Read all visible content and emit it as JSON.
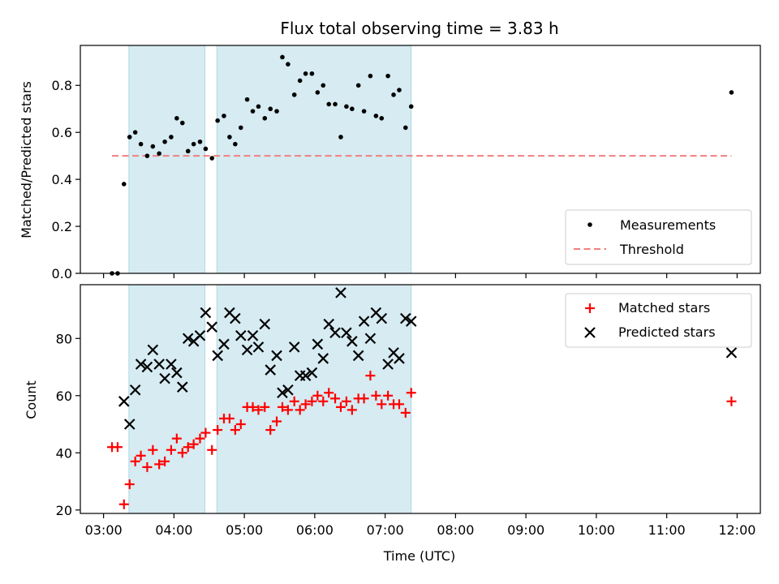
{
  "chart_data": {
    "title": "Flux total observing time = 3.83 h",
    "xlabel": "Time (UTC)",
    "x_tick_labels": [
      "03:00",
      "04:00",
      "05:00",
      "06:00",
      "07:00",
      "08:00",
      "09:00",
      "10:00",
      "11:00",
      "12:00"
    ],
    "x_range_hours": [
      2.67,
      12.33
    ],
    "shaded_intervals_hours": [
      [
        3.36,
        4.44
      ],
      [
        4.61,
        7.37
      ]
    ],
    "colors": {
      "shade": "#add8e6",
      "threshold": "#f08080",
      "matched": "#ff0000",
      "predicted": "#000000",
      "measurements": "#000000"
    },
    "panels": [
      {
        "type": "scatter",
        "ylabel": "Matched/Predicted stars",
        "ylim": [
          0,
          0.97
        ],
        "y_ticks": [
          0.0,
          0.2,
          0.4,
          0.6,
          0.8
        ],
        "y_tick_labels": [
          "0.0",
          "0.2",
          "0.4",
          "0.6",
          "0.8"
        ],
        "legend_position": "lower-right",
        "threshold": {
          "name": "Threshold",
          "value": 0.5,
          "x_range_hours": [
            3.12,
            11.92
          ]
        },
        "series": [
          {
            "name": "Measurements",
            "points": [
              [
                3.12,
                0.0
              ],
              [
                3.2,
                0.0
              ],
              [
                3.29,
                0.38
              ],
              [
                3.37,
                0.58
              ],
              [
                3.45,
                0.6
              ],
              [
                3.53,
                0.55
              ],
              [
                3.62,
                0.5
              ],
              [
                3.7,
                0.54
              ],
              [
                3.79,
                0.51
              ],
              [
                3.87,
                0.56
              ],
              [
                3.96,
                0.58
              ],
              [
                4.04,
                0.66
              ],
              [
                4.12,
                0.64
              ],
              [
                4.2,
                0.52
              ],
              [
                4.28,
                0.55
              ],
              [
                4.37,
                0.56
              ],
              [
                4.45,
                0.53
              ],
              [
                4.54,
                0.49
              ],
              [
                4.62,
                0.65
              ],
              [
                4.71,
                0.67
              ],
              [
                4.79,
                0.58
              ],
              [
                4.87,
                0.55
              ],
              [
                4.95,
                0.62
              ],
              [
                5.04,
                0.74
              ],
              [
                5.12,
                0.69
              ],
              [
                5.2,
                0.71
              ],
              [
                5.29,
                0.66
              ],
              [
                5.37,
                0.7
              ],
              [
                5.46,
                0.69
              ],
              [
                5.54,
                0.92
              ],
              [
                5.62,
                0.89
              ],
              [
                5.71,
                0.76
              ],
              [
                5.79,
                0.82
              ],
              [
                5.87,
                0.85
              ],
              [
                5.96,
                0.85
              ],
              [
                6.04,
                0.77
              ],
              [
                6.12,
                0.8
              ],
              [
                6.2,
                0.72
              ],
              [
                6.29,
                0.72
              ],
              [
                6.37,
                0.58
              ],
              [
                6.45,
                0.71
              ],
              [
                6.53,
                0.7
              ],
              [
                6.62,
                0.8
              ],
              [
                6.7,
                0.69
              ],
              [
                6.79,
                0.84
              ],
              [
                6.87,
                0.67
              ],
              [
                6.95,
                0.66
              ],
              [
                7.04,
                0.84
              ],
              [
                7.12,
                0.76
              ],
              [
                7.2,
                0.78
              ],
              [
                7.29,
                0.62
              ],
              [
                7.37,
                0.71
              ],
              [
                11.92,
                0.77
              ]
            ]
          }
        ]
      },
      {
        "type": "scatter",
        "ylabel": "Count",
        "ylim": [
          18.8,
          98.8
        ],
        "y_ticks": [
          20,
          40,
          60,
          80
        ],
        "y_tick_labels": [
          "20",
          "40",
          "60",
          "80"
        ],
        "legend_position": "top-right",
        "series": [
          {
            "name": "Matched stars",
            "marker": "plus",
            "points": [
              [
                3.12,
                42
              ],
              [
                3.2,
                42
              ],
              [
                3.29,
                22
              ],
              [
                3.37,
                29
              ],
              [
                3.45,
                37
              ],
              [
                3.53,
                39
              ],
              [
                3.62,
                35
              ],
              [
                3.7,
                41
              ],
              [
                3.79,
                36
              ],
              [
                3.87,
                37
              ],
              [
                3.96,
                41
              ],
              [
                4.04,
                45
              ],
              [
                4.12,
                40
              ],
              [
                4.2,
                42
              ],
              [
                4.28,
                43
              ],
              [
                4.37,
                45
              ],
              [
                4.45,
                47
              ],
              [
                4.54,
                41
              ],
              [
                4.62,
                48
              ],
              [
                4.71,
                52
              ],
              [
                4.79,
                52
              ],
              [
                4.87,
                48
              ],
              [
                4.95,
                50
              ],
              [
                5.04,
                56
              ],
              [
                5.12,
                56
              ],
              [
                5.2,
                55
              ],
              [
                5.29,
                56
              ],
              [
                5.37,
                48
              ],
              [
                5.46,
                51
              ],
              [
                5.54,
                56
              ],
              [
                5.62,
                55
              ],
              [
                5.71,
                58
              ],
              [
                5.79,
                55
              ],
              [
                5.87,
                57
              ],
              [
                5.96,
                58
              ],
              [
                6.04,
                60
              ],
              [
                6.12,
                58
              ],
              [
                6.2,
                61
              ],
              [
                6.29,
                59
              ],
              [
                6.37,
                56
              ],
              [
                6.45,
                58
              ],
              [
                6.53,
                55
              ],
              [
                6.62,
                59
              ],
              [
                6.7,
                59
              ],
              [
                6.79,
                67
              ],
              [
                6.87,
                60
              ],
              [
                6.95,
                57
              ],
              [
                7.04,
                60
              ],
              [
                7.12,
                57
              ],
              [
                7.2,
                57
              ],
              [
                7.29,
                54
              ],
              [
                7.37,
                61
              ],
              [
                11.92,
                58
              ]
            ]
          },
          {
            "name": "Predicted stars",
            "marker": "x",
            "points": [
              [
                3.29,
                58
              ],
              [
                3.37,
                50
              ],
              [
                3.45,
                62
              ],
              [
                3.53,
                71
              ],
              [
                3.62,
                70
              ],
              [
                3.7,
                76
              ],
              [
                3.79,
                71
              ],
              [
                3.87,
                66
              ],
              [
                3.96,
                71
              ],
              [
                4.04,
                68
              ],
              [
                4.12,
                63
              ],
              [
                4.2,
                80
              ],
              [
                4.28,
                79
              ],
              [
                4.37,
                81
              ],
              [
                4.45,
                89
              ],
              [
                4.54,
                84
              ],
              [
                4.62,
                74
              ],
              [
                4.71,
                78
              ],
              [
                4.79,
                89
              ],
              [
                4.87,
                87
              ],
              [
                4.95,
                81
              ],
              [
                5.04,
                76
              ],
              [
                5.12,
                81
              ],
              [
                5.2,
                77
              ],
              [
                5.29,
                85
              ],
              [
                5.37,
                69
              ],
              [
                5.46,
                74
              ],
              [
                5.54,
                61
              ],
              [
                5.62,
                62
              ],
              [
                5.71,
                77
              ],
              [
                5.79,
                67
              ],
              [
                5.87,
                67
              ],
              [
                5.96,
                68
              ],
              [
                6.04,
                78
              ],
              [
                6.12,
                73
              ],
              [
                6.2,
                85
              ],
              [
                6.29,
                82
              ],
              [
                6.37,
                96
              ],
              [
                6.45,
                82
              ],
              [
                6.53,
                79
              ],
              [
                6.62,
                74
              ],
              [
                6.7,
                86
              ],
              [
                6.79,
                80
              ],
              [
                6.87,
                89
              ],
              [
                6.95,
                87
              ],
              [
                7.04,
                71
              ],
              [
                7.12,
                75
              ],
              [
                7.2,
                73
              ],
              [
                7.29,
                87
              ],
              [
                7.37,
                86
              ],
              [
                11.92,
                75
              ]
            ]
          }
        ]
      }
    ]
  }
}
